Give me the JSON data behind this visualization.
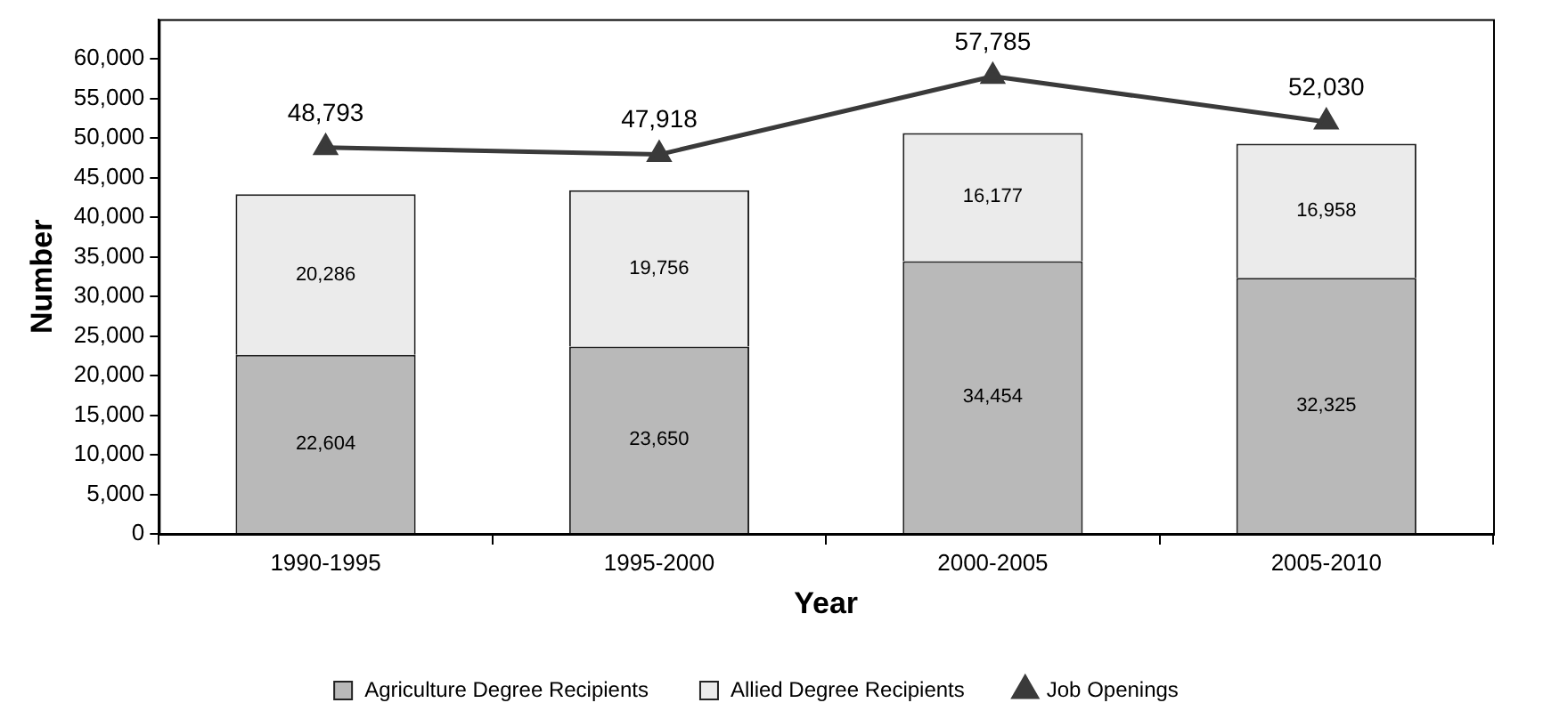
{
  "chart_data": {
    "type": "bar",
    "stacked": true,
    "xlabel": "Year",
    "ylabel": "Number",
    "categories": [
      "1990-1995",
      "1995-2000",
      "2000-2005",
      "2005-2010"
    ],
    "series": [
      {
        "name": "Agriculture Degree Recipients",
        "color": "#b9b9b9",
        "values": [
          22604,
          23650,
          34454,
          32325
        ],
        "value_labels": [
          "22,604",
          "23,650",
          "34,454",
          "32,325"
        ]
      },
      {
        "name": "Allied Degree Recipients",
        "color": "#ebebeb",
        "values": [
          20286,
          19756,
          16177,
          16958
        ],
        "value_labels": [
          "20,286",
          "19,756",
          "16,177",
          "16,958"
        ]
      },
      {
        "name": "Job Openings",
        "type": "line",
        "color": "#3a3a3a",
        "values": [
          48793,
          47918,
          57785,
          52030
        ],
        "value_labels": [
          "48,793",
          "47,918",
          "57,785",
          "52,030"
        ]
      }
    ],
    "ylim": [
      0,
      65000
    ],
    "yticks": [
      {
        "value": 0,
        "label": "0"
      },
      {
        "value": 5000,
        "label": "5,000"
      },
      {
        "value": 10000,
        "label": "10,000"
      },
      {
        "value": 15000,
        "label": "15,000"
      },
      {
        "value": 20000,
        "label": "20,000"
      },
      {
        "value": 25000,
        "label": "25,000"
      },
      {
        "value": 30000,
        "label": "30,000"
      },
      {
        "value": 35000,
        "label": "35,000"
      },
      {
        "value": 40000,
        "label": "40,000"
      },
      {
        "value": 45000,
        "label": "45,000"
      },
      {
        "value": 50000,
        "label": "50,000"
      },
      {
        "value": 55000,
        "label": "55,000"
      },
      {
        "value": 60000,
        "label": "60,000"
      }
    ],
    "marker": "triangle",
    "line_style": "solid",
    "grid": false,
    "legend": "bottom"
  }
}
